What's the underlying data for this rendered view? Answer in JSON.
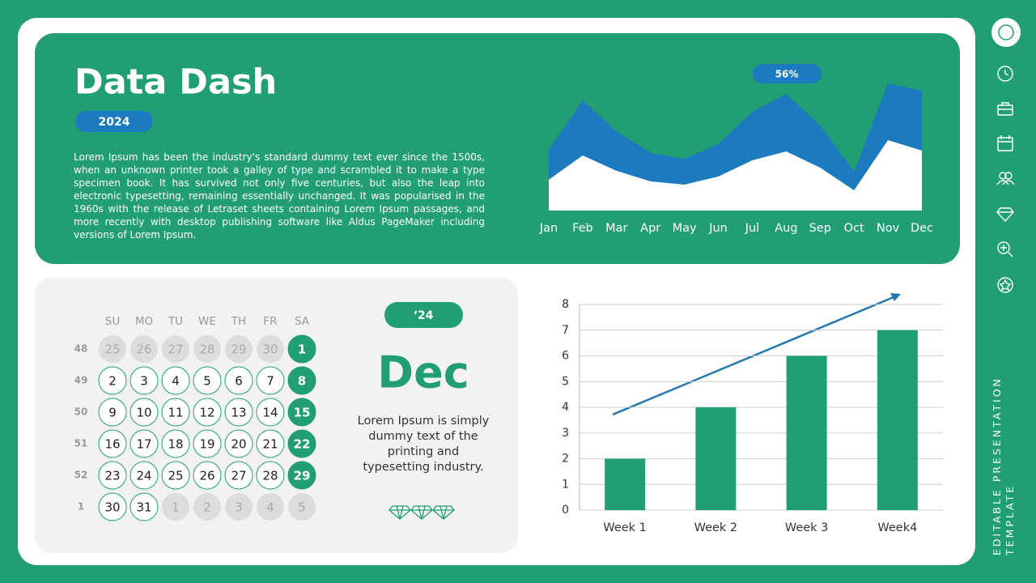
{
  "header": {
    "title": "Data Dash",
    "year": "2024",
    "text": "Lorem Ipsum has been the industry's standard dummy text ever since the 1500s, when an unknown printer took a galley of type and scrambled it to make a type specimen book. It has survived not only five centuries, but also the leap into electronic typesetting, remaining essentially unchanged. It was popularised in the 1960s with the release of Letraset sheets containing Lorem Ipsum passages, and more recently with desktop publishing software like Aldus PageMaker including versions of Lorem Ipsum."
  },
  "chart_data": [
    {
      "type": "area",
      "annotation": "56%",
      "categories": [
        "Jan",
        "Feb",
        "Mar",
        "Apr",
        "May",
        "Jun",
        "Jul",
        "Aug",
        "Sep",
        "Oct",
        "Nov",
        "Dec"
      ],
      "series": [
        {
          "color": "#1c7bbf",
          "values": [
            75,
            136,
            98,
            71,
            64,
            82,
            122,
            144,
            105,
            48,
            157,
            148
          ]
        },
        {
          "color": "#ffffff",
          "values": [
            38,
            68,
            49,
            36,
            32,
            42,
            62,
            73,
            53,
            25,
            87,
            74
          ]
        }
      ],
      "ylim": [
        0,
        160
      ]
    },
    {
      "type": "bar",
      "categories": [
        "Week 1",
        "Week 2",
        "Week 3",
        "Week4"
      ],
      "values": [
        2,
        4,
        6,
        7
      ],
      "color": "#229e74",
      "ylim": [
        0,
        8
      ],
      "yticks": [
        0,
        1,
        2,
        3,
        4,
        5,
        6,
        7,
        8
      ],
      "grid": true
    }
  ],
  "calendar": {
    "weekdays": [
      "SU",
      "MO",
      "TU",
      "WE",
      "TH",
      "FR",
      "SA"
    ],
    "rows": [
      {
        "week": 48,
        "days": [
          25,
          26,
          27,
          28,
          29,
          30,
          1
        ]
      },
      {
        "week": 49,
        "days": [
          2,
          3,
          4,
          5,
          6,
          7,
          8
        ]
      },
      {
        "week": 50,
        "days": [
          9,
          10,
          11,
          12,
          13,
          14,
          15
        ]
      },
      {
        "week": 51,
        "days": [
          16,
          17,
          18,
          19,
          20,
          21,
          22
        ]
      },
      {
        "week": 52,
        "days": [
          23,
          24,
          25,
          26,
          27,
          28,
          29
        ]
      },
      {
        "week": 1,
        "days": [
          30,
          31,
          1,
          2,
          3,
          4,
          5
        ]
      }
    ],
    "year": "‘24",
    "month": "Dec",
    "text": "Lorem Ipsum is simply dummy text of the printing and typesetting industry."
  },
  "sidebar": {
    "text": "EDITABLE PRESENTATION TEMPLATE"
  }
}
